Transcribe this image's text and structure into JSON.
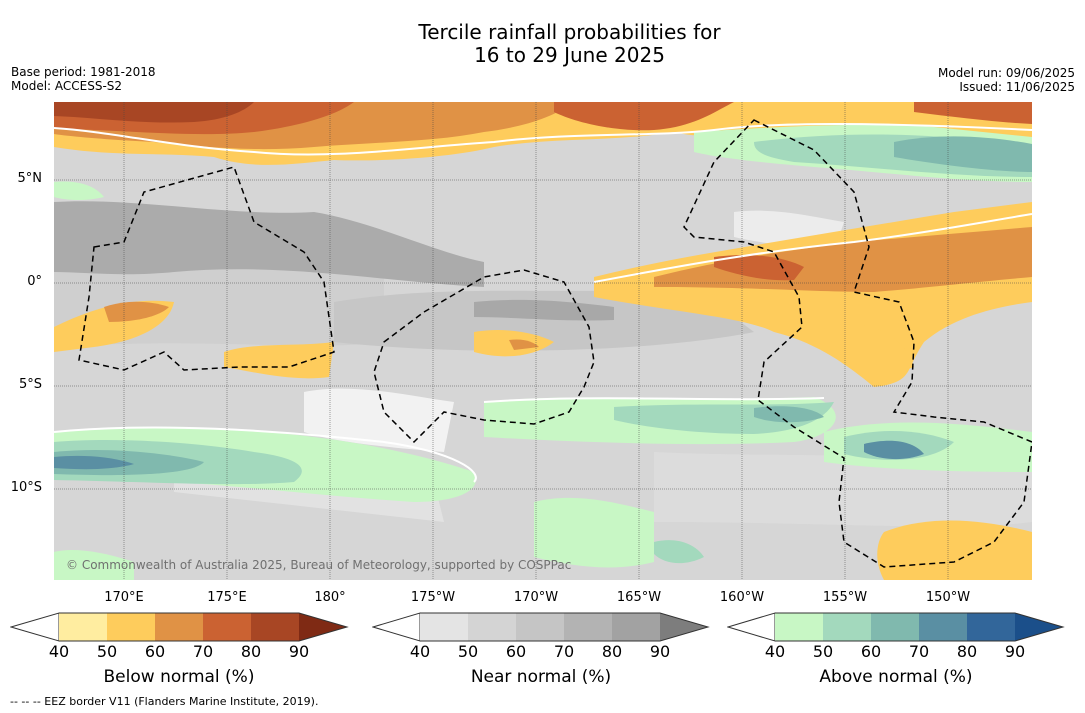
{
  "title": {
    "line1": "Tercile rainfall probabilities for",
    "line2": "16 to 29 June 2025"
  },
  "meta_left": {
    "base_period": "Base period: 1981-2018",
    "model": "Model: ACCESS-S2"
  },
  "meta_right": {
    "model_run": "Model run: 09/06/2025",
    "issued": "Issued: 11/06/2025"
  },
  "latitude_labels": [
    "5°N",
    "0°",
    "5°S",
    "10°S"
  ],
  "longitude_labels": [
    "170°E",
    "175°E",
    "180°",
    "175°W",
    "170°W",
    "165°W",
    "160°W",
    "155°W",
    "150°W"
  ],
  "credit": "© Commonwealth of Australia 2025, Bureau of Meteorology, supported by COSPPac",
  "colorbars": {
    "below": {
      "label": "Below normal (%)",
      "ticks": [
        "40",
        "50",
        "60",
        "70",
        "80",
        "90"
      ],
      "colors": [
        "#ffeda0",
        "#fecc5c",
        "#e09245",
        "#cb6232",
        "#a84624",
        "#7f2a14"
      ]
    },
    "near": {
      "label": "Near normal (%)",
      "ticks": [
        "40",
        "50",
        "60",
        "70",
        "80",
        "90"
      ],
      "colors": [
        "#e4e4e4",
        "#d4d4d4",
        "#c5c5c5",
        "#b3b3b3",
        "#a2a2a2",
        "#7d7d7d"
      ]
    },
    "above": {
      "label": "Above normal (%)",
      "ticks": [
        "40",
        "50",
        "60",
        "70",
        "80",
        "90"
      ],
      "colors": [
        "#c8f7c5",
        "#a3d9bd",
        "#80b9ae",
        "#5a8fa3",
        "#32669a",
        "#1b4f8a"
      ]
    }
  },
  "eez_note": "--  --  -- EEZ border V11 (Flanders Marine Institute, 2019)."
}
